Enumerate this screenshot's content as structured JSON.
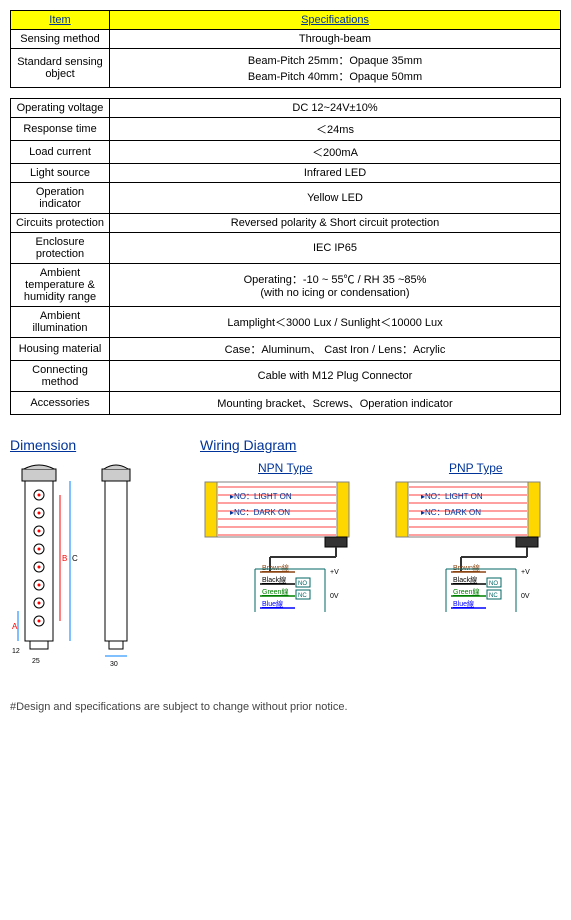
{
  "table1": {
    "header": {
      "col1": "Item",
      "col2": "Specifications"
    },
    "rows": [
      {
        "label": "Sensing method",
        "value": "Through-beam"
      },
      {
        "label": "Standard sensing object",
        "value": "Beam-Pitch 25mm：Opaque 35mm\nBeam-Pitch 40mm：Opaque 50mm"
      }
    ]
  },
  "table2": {
    "rows": [
      {
        "label": "Operating voltage",
        "value": "DC 12~24V±10%"
      },
      {
        "label": "Response time",
        "value": "＜24ms"
      },
      {
        "label": "Load current",
        "value": "＜200mA"
      },
      {
        "label": "Light source",
        "value": "Infrared LED"
      },
      {
        "label": "Operation indicator",
        "value": "Yellow LED"
      },
      {
        "label": "Circuits protection",
        "value": "Reversed polarity & Short circuit protection"
      },
      {
        "label": "Enclosure protection",
        "value": "IEC IP65"
      },
      {
        "label": "Ambient temperature & humidity range",
        "value": "Operating：-10 ~ 55℃ / RH 35 ~85%\n(with no icing or condensation)"
      },
      {
        "label": "Ambient illumination",
        "value": "Lamplight＜3000 Lux / Sunlight＜10000 Lux"
      },
      {
        "label": "Housing material",
        "value": "Case：Aluminum、 Cast Iron / Lens：Acrylic"
      },
      {
        "label": "Connecting method",
        "value": "Cable with M12 Plug Connector"
      },
      {
        "label": "Accessories",
        "value": "Mounting bracket、Screws、Operation indicator"
      }
    ]
  },
  "sections": {
    "dimension": "Dimension",
    "wiring": "Wiring Diagram"
  },
  "wiring": {
    "npn": {
      "title": "NPN Type",
      "no": "NO：LIGHT ON",
      "nc": "NC：DARK ON"
    },
    "pnp": {
      "title": "PNP Type",
      "no": "NO：LIGHT ON",
      "nc": "NC：DARK ON"
    },
    "legend": {
      "brown": "Brown線",
      "black": "Black線",
      "green": "Green線",
      "blue": "Blue線",
      "no": "NO",
      "nc": "NC",
      "vplus": "+V",
      "vzero": "0V"
    },
    "colors": {
      "brown": "#8b4513",
      "black": "#000000",
      "green": "#008000",
      "blue": "#0000ff",
      "body_yellow": "#ffd700",
      "outline": "#808080",
      "red": "#ff0000"
    }
  },
  "dimension": {
    "labels": {
      "twelve": "12",
      "twentyfive": "25",
      "thirty": "30",
      "a": "A",
      "b": "B",
      "c": "C"
    },
    "colors": {
      "outline": "#000000",
      "red": "#ff0000",
      "arrow": "#0080ff"
    }
  },
  "footnote": "#Design and specifications are subject to change without prior notice."
}
